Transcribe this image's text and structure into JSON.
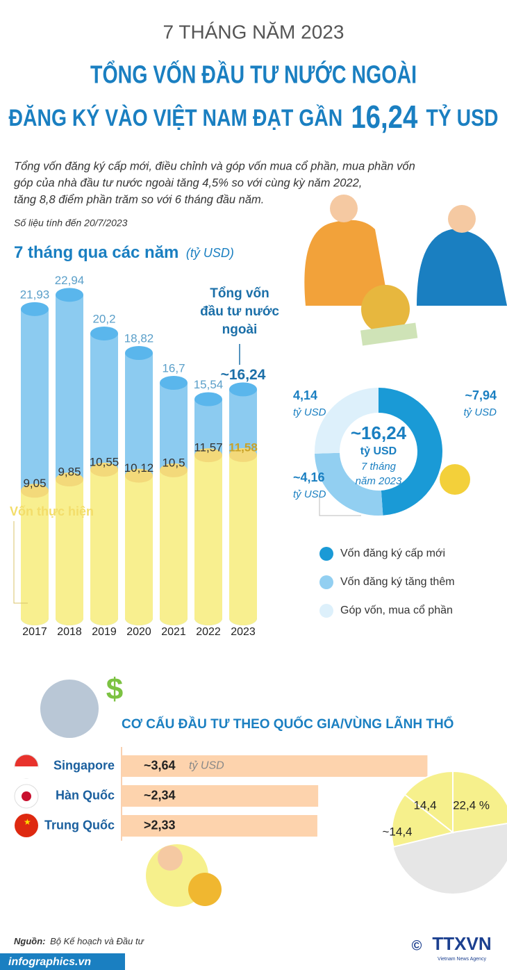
{
  "header": {
    "kicker": "7 THÁNG NĂM 2023",
    "title_line1": "TỔNG VỐN ĐẦU TƯ NƯỚC NGOÀI",
    "title_line2": "ĐĂNG KÝ VÀO VIỆT NAM ĐẠT GẦN",
    "highlight": "16,24",
    "highlight_unit": "TỶ USD"
  },
  "intro": {
    "lines": [
      "Tổng vốn đăng ký cấp mới, điều chỉnh và góp vốn mua cổ phần, mua phần vốn",
      "góp của nhà đầu tư nước ngoài  tăng 4,5% so với cùng kỳ năm 2022,",
      "tăng 8,8 điểm phần trăm so với 6 tháng đầu năm."
    ],
    "note": "Số liệu tính đến 20/7/2023"
  },
  "chart_data": [
    {
      "type": "bar",
      "title": "7 tháng qua các năm",
      "unit": "(tỷ USD)",
      "categories": [
        "2017",
        "2018",
        "2019",
        "2020",
        "2021",
        "2022",
        "2023"
      ],
      "series": [
        {
          "name": "Tổng vốn đầu tư nước ngoài",
          "color": "#8ccbf0",
          "values": [
            21.93,
            22.94,
            20.2,
            18.82,
            16.7,
            15.54,
            16.24
          ],
          "value_labels": [
            "21,93",
            "22,94",
            "20,2",
            "18,82",
            "16,7",
            "15,54",
            "~16,24"
          ]
        },
        {
          "name": "Vốn thực hiện",
          "color": "#f8ef8f",
          "values": [
            9.05,
            9.85,
            10.55,
            10.12,
            10.5,
            11.57,
            11.58
          ],
          "value_labels": [
            "9,05",
            "9,85",
            "10,55",
            "10,12",
            "10,5",
            "11,57",
            "11,58"
          ]
        }
      ]
    },
    {
      "type": "donut",
      "center_value": "~16,24",
      "center_unit": "tỷ USD",
      "center_period": "7 tháng",
      "center_year": "năm 2023",
      "unit": "tỷ USD",
      "categories": [
        "Vốn đăng ký cấp mới",
        "Vốn đăng ký tăng thêm",
        "Góp vốn, mua cổ phần"
      ],
      "values": [
        7.94,
        4.16,
        4.14
      ],
      "value_labels": [
        "~7,94",
        "~4,16",
        "4,14"
      ],
      "colors": [
        "#1a9ad6",
        "#92cff1",
        "#ddf0fb"
      ]
    },
    {
      "type": "hbar",
      "title": "CƠ CẤU ĐẦU TƯ THEO QUỐC GIA/VÙNG LÃNH THỔ",
      "unit": "tỷ USD",
      "categories": [
        "Singapore",
        "Hàn Quốc",
        "Trung Quốc"
      ],
      "values": [
        3.64,
        2.34,
        2.33
      ],
      "value_labels": [
        "~3,64",
        "~2,34",
        ">2,33"
      ],
      "color": "#fdd3ad"
    },
    {
      "type": "pie",
      "values": [
        22.4,
        14.4,
        14.4
      ],
      "value_labels": [
        "22,4 %",
        "14,4",
        "~14,4"
      ],
      "colors": [
        "#f6f08c",
        "#f6f08c",
        "#f6f08c"
      ]
    }
  ],
  "footer": {
    "source_label": "Nguồn:",
    "source": "Bộ Kế hoạch và Đầu tư",
    "site": "infographics.vn",
    "copyright": "©",
    "agency": "TTXVN",
    "agency_sub": "Vietnam News Agency"
  }
}
